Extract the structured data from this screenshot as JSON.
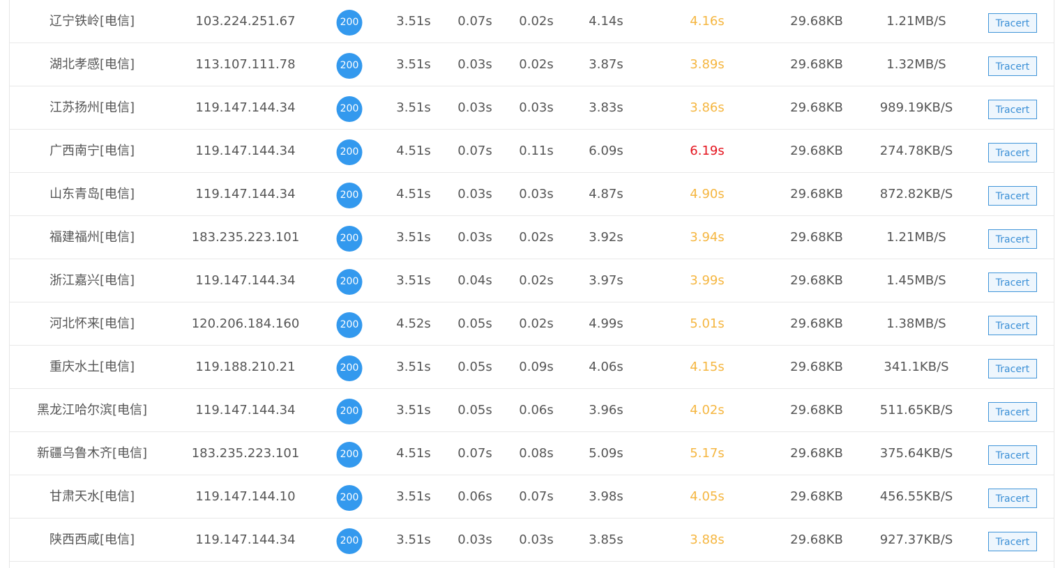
{
  "colors": {
    "status_badge": "#3399ee",
    "total_warn": "#f5b640",
    "total_bad": "#e4141e",
    "button_border": "#3f94d8",
    "text": "#555555"
  },
  "button_label": "Tracert",
  "rows": [
    {
      "location": "辽宁铁岭[电信]",
      "ip": "103.224.251.67",
      "code": "200",
      "t1": "3.51s",
      "t2": "0.07s",
      "t3": "0.02s",
      "t4": "4.14s",
      "total": "4.16s",
      "total_status": "warn",
      "size": "29.68KB",
      "speed": "1.21MB/S"
    },
    {
      "location": "湖北孝感[电信]",
      "ip": "113.107.111.78",
      "code": "200",
      "t1": "3.51s",
      "t2": "0.03s",
      "t3": "0.02s",
      "t4": "3.87s",
      "total": "3.89s",
      "total_status": "warn",
      "size": "29.68KB",
      "speed": "1.32MB/S"
    },
    {
      "location": "江苏扬州[电信]",
      "ip": "119.147.144.34",
      "code": "200",
      "t1": "3.51s",
      "t2": "0.03s",
      "t3": "0.03s",
      "t4": "3.83s",
      "total": "3.86s",
      "total_status": "warn",
      "size": "29.68KB",
      "speed": "989.19KB/S"
    },
    {
      "location": "广西南宁[电信]",
      "ip": "119.147.144.34",
      "code": "200",
      "t1": "4.51s",
      "t2": "0.07s",
      "t3": "0.11s",
      "t4": "6.09s",
      "total": "6.19s",
      "total_status": "bad",
      "size": "29.68KB",
      "speed": "274.78KB/S"
    },
    {
      "location": "山东青岛[电信]",
      "ip": "119.147.144.34",
      "code": "200",
      "t1": "4.51s",
      "t2": "0.03s",
      "t3": "0.03s",
      "t4": "4.87s",
      "total": "4.90s",
      "total_status": "warn",
      "size": "29.68KB",
      "speed": "872.82KB/S"
    },
    {
      "location": "福建福州[电信]",
      "ip": "183.235.223.101",
      "code": "200",
      "t1": "3.51s",
      "t2": "0.03s",
      "t3": "0.02s",
      "t4": "3.92s",
      "total": "3.94s",
      "total_status": "warn",
      "size": "29.68KB",
      "speed": "1.21MB/S"
    },
    {
      "location": "浙江嘉兴[电信]",
      "ip": "119.147.144.34",
      "code": "200",
      "t1": "3.51s",
      "t2": "0.04s",
      "t3": "0.02s",
      "t4": "3.97s",
      "total": "3.99s",
      "total_status": "warn",
      "size": "29.68KB",
      "speed": "1.45MB/S"
    },
    {
      "location": "河北怀来[电信]",
      "ip": "120.206.184.160",
      "code": "200",
      "t1": "4.52s",
      "t2": "0.05s",
      "t3": "0.02s",
      "t4": "4.99s",
      "total": "5.01s",
      "total_status": "warn",
      "size": "29.68KB",
      "speed": "1.38MB/S"
    },
    {
      "location": "重庆水土[电信]",
      "ip": "119.188.210.21",
      "code": "200",
      "t1": "3.51s",
      "t2": "0.05s",
      "t3": "0.09s",
      "t4": "4.06s",
      "total": "4.15s",
      "total_status": "warn",
      "size": "29.68KB",
      "speed": "341.1KB/S"
    },
    {
      "location": "黑龙江哈尔滨[电信]",
      "ip": "119.147.144.34",
      "code": "200",
      "t1": "3.51s",
      "t2": "0.05s",
      "t3": "0.06s",
      "t4": "3.96s",
      "total": "4.02s",
      "total_status": "warn",
      "size": "29.68KB",
      "speed": "511.65KB/S"
    },
    {
      "location": "新疆乌鲁木齐[电信]",
      "ip": "183.235.223.101",
      "code": "200",
      "t1": "4.51s",
      "t2": "0.07s",
      "t3": "0.08s",
      "t4": "5.09s",
      "total": "5.17s",
      "total_status": "warn",
      "size": "29.68KB",
      "speed": "375.64KB/S"
    },
    {
      "location": "甘肃天水[电信]",
      "ip": "119.147.144.10",
      "code": "200",
      "t1": "3.51s",
      "t2": "0.06s",
      "t3": "0.07s",
      "t4": "3.98s",
      "total": "4.05s",
      "total_status": "warn",
      "size": "29.68KB",
      "speed": "456.55KB/S"
    },
    {
      "location": "陕西西咸[电信]",
      "ip": "119.147.144.34",
      "code": "200",
      "t1": "3.51s",
      "t2": "0.03s",
      "t3": "0.03s",
      "t4": "3.85s",
      "total": "3.88s",
      "total_status": "warn",
      "size": "29.68KB",
      "speed": "927.37KB/S"
    }
  ]
}
